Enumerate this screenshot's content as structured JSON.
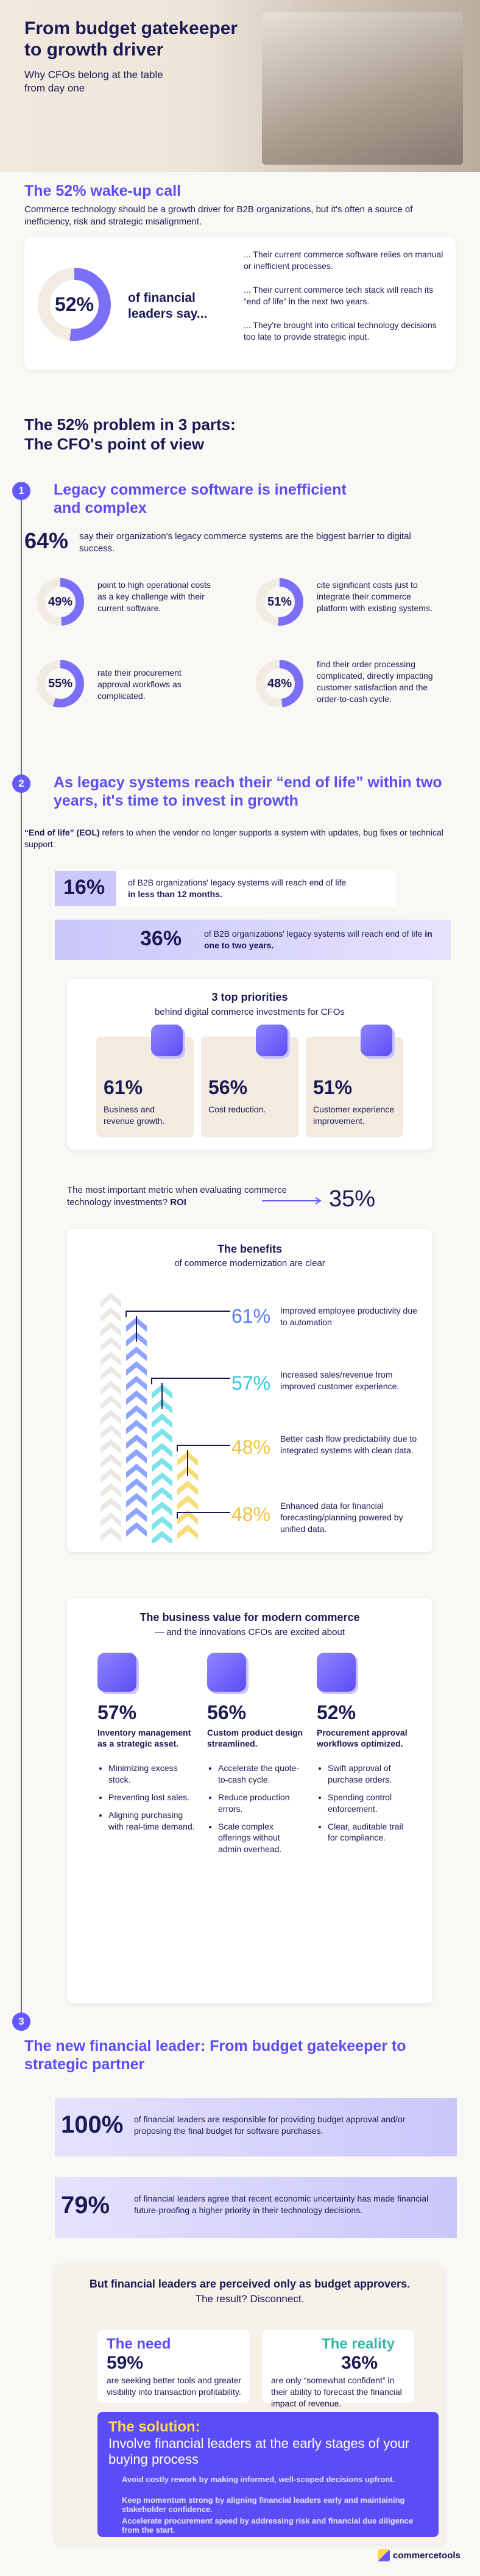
{
  "header": {
    "title": "From budget gatekeeper to growth driver",
    "subtitle": "Why CFOs belong at the table from day one"
  },
  "wake_up": {
    "title": "The 52% wake-up call",
    "body": "Commerce technology should be a growth driver for B2B organizations, but it's often a source of inefficiency, risk and strategic misalignment.",
    "stat": "52%",
    "stat_label": "of financial leaders say...",
    "points": [
      "... Their current commerce software relies on manual or inefficient processes.",
      "... Their current commerce tech stack will reach its “end of life” in the next two years.",
      "... They're brought into critical technology decisions too late to provide strategic input."
    ]
  },
  "problem": {
    "title": "The 52% problem in 3 parts:",
    "subtitle": "The CFO's point of view"
  },
  "part1": {
    "number": "1",
    "title": "Legacy commerce software is inefficient and complex",
    "stat": "64%",
    "stat_text": "say their organization's legacy commerce systems are the biggest barrier to digital success.",
    "items": [
      {
        "value": "49%",
        "text": "point to high operational costs as a key challenge with their current software."
      },
      {
        "value": "51%",
        "text": "cite significant costs just to integrate their commerce platform with existing systems."
      },
      {
        "value": "55%",
        "text": "rate their procurement approval workflows as complicated."
      },
      {
        "value": "48%",
        "text": "find their order processing complicated, directly impacting customer satisfaction and the order-to-cash cycle."
      }
    ]
  },
  "part2": {
    "number": "2",
    "title": "As legacy systems reach their “end of life” within two years, it's time to invest in growth",
    "eol_term": "“End of life” (EOL)",
    "eol_text": "refers to when the vendor no longer supports a system with updates, bug fixes or technical support.",
    "bars": [
      {
        "value": "16%",
        "text": "of B2B organizations' legacy systems will reach end of life",
        "emphasis": "in less than 12 months."
      },
      {
        "value": "36%",
        "text": "of B2B organizations' legacy systems will reach end of life",
        "emphasis": "in one to two years."
      }
    ],
    "priorities": {
      "title": "3 top priorities",
      "subtitle": "behind digital commerce investments for CFOs",
      "items": [
        {
          "value": "61%",
          "text": "Business and revenue growth."
        },
        {
          "value": "56%",
          "text": "Cost reduction."
        },
        {
          "value": "51%",
          "text": "Customer experience improvement."
        }
      ]
    },
    "roi": {
      "text": "The most important metric when evaluating commerce technology investments?",
      "emphasis": "ROI",
      "value": "35%"
    },
    "benefits": {
      "title": "The benefits",
      "subtitle": "of commerce modernization are clear",
      "items": [
        {
          "value": "61%",
          "text": "Improved employee productivity due to automation"
        },
        {
          "value": "57%",
          "text": "Increased sales/revenue from improved customer experience."
        },
        {
          "value": "48%",
          "text": "Better cash flow predictability due to integrated systems with clean data."
        },
        {
          "value": "48%",
          "text": "Enhanced data for financial forecasting/planning powered by unified data."
        }
      ]
    },
    "business_value": {
      "title": "The business value for modern commerce",
      "subtitle": "— and the innovations CFOs are excited about",
      "columns": [
        {
          "value": "57%",
          "title": "Inventory management as a strategic asset.",
          "bullets": [
            "Minimizing excess stock.",
            "Preventing lost sales.",
            "Aligning purchasing with real-time demand."
          ]
        },
        {
          "value": "56%",
          "title": "Custom product design streamlined.",
          "bullets": [
            "Accelerate the quote-to-cash cycle.",
            "Reduce production errors.",
            "Scale complex offerings without admin overhead."
          ]
        },
        {
          "value": "52%",
          "title": "Procurement approval workflows optimized.",
          "bullets": [
            "Swift approval of purchase orders.",
            "Spending control enforcement.",
            "Clear, auditable trail for compliance."
          ]
        }
      ]
    }
  },
  "part3": {
    "number": "3",
    "title": "The new financial leader: From budget gatekeeper to strategic partner",
    "stats": [
      {
        "value": "100%",
        "text": "of financial leaders are responsible for providing budget approval and/or proposing the final budget for software purchases."
      },
      {
        "value": "79%",
        "text": "of financial leaders agree that recent economic uncertainty has made financial future-proofing a higher priority in their technology decisions."
      }
    ],
    "disconnect": {
      "title": "But financial leaders are perceived only as budget approvers.",
      "subtitle": "The result? Disconnect.",
      "need": {
        "label": "The need",
        "value": "59%",
        "text": "are seeking better tools and greater visibility into transaction profitability."
      },
      "reality": {
        "label": "The reality",
        "value": "36%",
        "text": "are only “somewhat confident” in their ability to forecast the financial impact of revenue."
      }
    },
    "solution": {
      "label": "The solution:",
      "title": "Involve financial leaders at the early stages of your buying process",
      "points": [
        "Avoid costly rework by making informed, well-scoped decisions upfront.",
        "Keep momentum strong by aligning financial leaders early and maintaining stakeholder confidence.",
        "Accelerate procurement speed by addressing risk and financial due diligence from the start."
      ]
    }
  },
  "footer": {
    "logo": "commercetools"
  }
}
